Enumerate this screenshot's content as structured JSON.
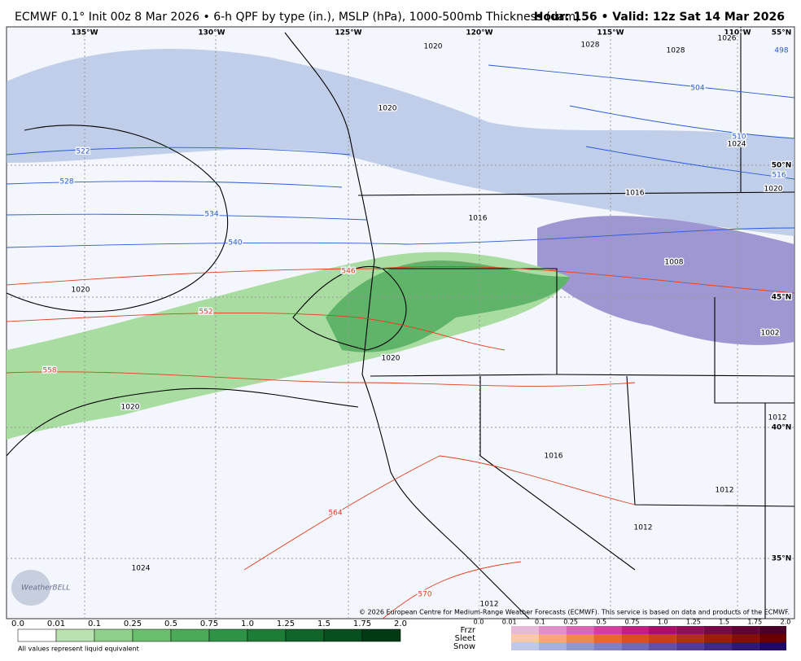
{
  "header": {
    "title": "ECMWF 0.1° Init 00z 8 Mar 2026 • 6-h QPF by type (in.), MSLP (hPa), 1000-500mb Thickness (dam)",
    "valid": "Hour: 156 • Valid: 12z Sat 14 Mar 2026"
  },
  "map": {
    "lon_labels": [
      "135°W",
      "130°W",
      "125°W",
      "120°W",
      "115°W",
      "110°W",
      "55°N"
    ],
    "lat_labels": [
      "50°N",
      "45°N",
      "40°N",
      "35°N"
    ],
    "thickness_labels_cold": [
      "498",
      "504",
      "510",
      "516",
      "522",
      "528",
      "534",
      "540"
    ],
    "thickness_labels_warm": [
      "546",
      "552",
      "558",
      "564",
      "570"
    ],
    "pressure_labels": [
      "1020",
      "1028",
      "1028",
      "1026",
      "1020",
      "1024",
      "1020",
      "1016",
      "1016",
      "1008",
      "1020",
      "1020",
      "1002",
      "1020",
      "1012",
      "1016",
      "1012",
      "1012",
      "1024",
      "1012"
    ],
    "copyright": "© 2026 European Centre for Medium-Range Weather Forecasts (ECMWF). This service is based on data and products of the ECMWF.",
    "logo": "WeatherBELL"
  },
  "legend": {
    "qpf_ticks": [
      "0.0",
      "0.01",
      "0.1",
      "0.25",
      "0.5",
      "0.75",
      "1.0",
      "1.25",
      "1.5",
      "1.75",
      "2.0"
    ],
    "note": "All values represent liquid equivalent",
    "types": [
      "Frzr",
      "Sleet",
      "Snow"
    ],
    "type_ticks": [
      "0.0",
      "0.01",
      "0.1",
      "0.25",
      "0.5",
      "0.75",
      "1.0",
      "1.25",
      "1.5",
      "1.75",
      "2.0"
    ]
  }
}
